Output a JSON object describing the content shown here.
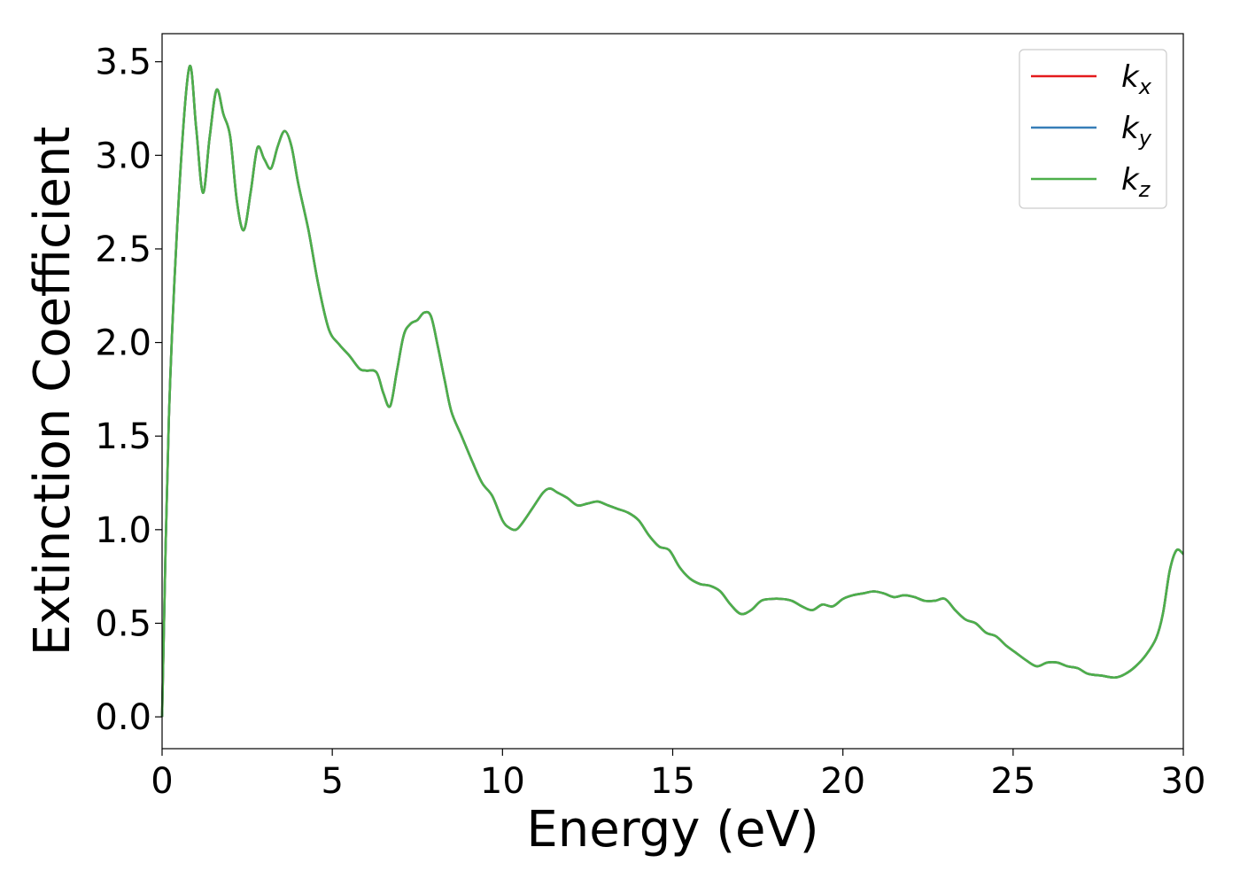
{
  "chart_data": {
    "type": "line",
    "xlabel": "Energy (eV)",
    "ylabel": "Extinction Coefficient",
    "xlim": [
      0,
      30
    ],
    "ylim": [
      -0.17,
      3.65
    ],
    "xticks": [
      0,
      5,
      10,
      15,
      20,
      25,
      30
    ],
    "xtick_labels": [
      "0",
      "5",
      "10",
      "15",
      "20",
      "25",
      "30"
    ],
    "yticks": [
      0.0,
      0.5,
      1.0,
      1.5,
      2.0,
      2.5,
      3.0,
      3.5
    ],
    "ytick_labels": [
      "0.0",
      "0.5",
      "1.0",
      "1.5",
      "2.0",
      "2.5",
      "3.0",
      "3.5"
    ],
    "grid": false,
    "legend_position": "top-right",
    "series": [
      {
        "name": "k",
        "subscript": "x",
        "color": "#e41a1c"
      },
      {
        "name": "k",
        "subscript": "y",
        "color": "#377eb8"
      },
      {
        "name": "k",
        "subscript": "z",
        "color": "#4daf4a"
      }
    ],
    "x": [
      0,
      0.2,
      0.5,
      0.8,
      1.0,
      1.2,
      1.4,
      1.6,
      1.8,
      2.0,
      2.2,
      2.4,
      2.6,
      2.8,
      3.0,
      3.2,
      3.4,
      3.6,
      3.8,
      4.0,
      4.3,
      4.6,
      4.9,
      5.2,
      5.5,
      5.8,
      6.0,
      6.3,
      6.5,
      6.7,
      6.9,
      7.1,
      7.3,
      7.5,
      7.7,
      7.9,
      8.1,
      8.3,
      8.5,
      8.8,
      9.1,
      9.4,
      9.7,
      10.0,
      10.2,
      10.4,
      10.6,
      10.9,
      11.2,
      11.4,
      11.6,
      11.9,
      12.2,
      12.5,
      12.8,
      13.1,
      13.4,
      13.7,
      14.0,
      14.3,
      14.6,
      14.9,
      15.2,
      15.5,
      15.8,
      16.1,
      16.4,
      16.7,
      17.0,
      17.3,
      17.6,
      17.9,
      18.2,
      18.5,
      18.8,
      19.1,
      19.4,
      19.7,
      20.0,
      20.3,
      20.6,
      20.9,
      21.2,
      21.5,
      21.8,
      22.1,
      22.4,
      22.7,
      23.0,
      23.3,
      23.6,
      23.9,
      24.2,
      24.5,
      24.8,
      25.1,
      25.4,
      25.7,
      26.0,
      26.3,
      26.6,
      26.9,
      27.2,
      27.6,
      28.0,
      28.3,
      28.6,
      28.9,
      29.2,
      29.4,
      29.6,
      29.8,
      30.0
    ],
    "values": [
      0.0,
      1.6,
      2.8,
      3.47,
      3.15,
      2.8,
      3.1,
      3.35,
      3.22,
      3.1,
      2.75,
      2.6,
      2.8,
      3.04,
      2.98,
      2.93,
      3.05,
      3.13,
      3.05,
      2.85,
      2.6,
      2.3,
      2.07,
      1.99,
      1.93,
      1.86,
      1.85,
      1.84,
      1.73,
      1.66,
      1.85,
      2.04,
      2.1,
      2.12,
      2.16,
      2.14,
      1.98,
      1.8,
      1.63,
      1.5,
      1.37,
      1.25,
      1.18,
      1.05,
      1.01,
      1.0,
      1.04,
      1.12,
      1.2,
      1.22,
      1.2,
      1.17,
      1.13,
      1.14,
      1.15,
      1.13,
      1.11,
      1.09,
      1.05,
      0.97,
      0.91,
      0.89,
      0.8,
      0.74,
      0.71,
      0.7,
      0.67,
      0.6,
      0.55,
      0.57,
      0.62,
      0.63,
      0.63,
      0.62,
      0.59,
      0.57,
      0.6,
      0.59,
      0.63,
      0.65,
      0.66,
      0.67,
      0.66,
      0.64,
      0.65,
      0.64,
      0.62,
      0.62,
      0.63,
      0.57,
      0.52,
      0.5,
      0.45,
      0.43,
      0.38,
      0.34,
      0.3,
      0.27,
      0.29,
      0.29,
      0.27,
      0.26,
      0.23,
      0.22,
      0.21,
      0.23,
      0.27,
      0.33,
      0.42,
      0.55,
      0.78,
      0.89,
      0.87
    ]
  }
}
